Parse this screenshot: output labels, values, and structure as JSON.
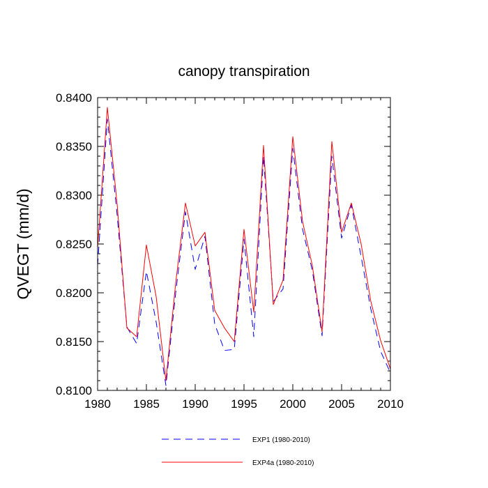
{
  "chart_data": {
    "type": "line",
    "title": "canopy transpiration",
    "ylabel": "QVEGT  (mm/d)",
    "xlabel": "",
    "xlim": [
      1980,
      2010
    ],
    "ylim": [
      0.81,
      0.84
    ],
    "xticks": [
      1980,
      1985,
      1990,
      1995,
      2000,
      2005,
      2010
    ],
    "xtick_labels": [
      "1980",
      "1985",
      "1990",
      "1995",
      "2000",
      "2005",
      "2010"
    ],
    "yticks": [
      0.81,
      0.815,
      0.82,
      0.825,
      0.83,
      0.835,
      0.84
    ],
    "ytick_labels": [
      "0.8100",
      "0.8150",
      "0.8200",
      "0.8250",
      "0.8300",
      "0.8350",
      "0.8400"
    ],
    "x": [
      1980,
      1981,
      1982,
      1983,
      1984,
      1985,
      1986,
      1987,
      1988,
      1989,
      1990,
      1991,
      1992,
      1993,
      1994,
      1995,
      1996,
      1997,
      1998,
      1999,
      2000,
      2001,
      2002,
      2003,
      2004,
      2005,
      2006,
      2007,
      2008,
      2009,
      2010
    ],
    "series": [
      {
        "name": "EXP1 (1980-2010)",
        "color": "#0000ff",
        "dash": "dashed",
        "values": [
          0.8228,
          0.8378,
          0.828,
          0.8165,
          0.8148,
          0.8222,
          0.817,
          0.8105,
          0.82,
          0.8283,
          0.8224,
          0.8258,
          0.8168,
          0.8141,
          0.8142,
          0.8255,
          0.8155,
          0.834,
          0.8191,
          0.8204,
          0.8348,
          0.8265,
          0.8223,
          0.8156,
          0.834,
          0.8256,
          0.829,
          0.8237,
          0.8183,
          0.814,
          0.8118
        ]
      },
      {
        "name": "EXP4a (1980-2010)",
        "color": "#ff0000",
        "dash": "solid",
        "values": [
          0.8246,
          0.839,
          0.8291,
          0.8164,
          0.8155,
          0.8249,
          0.8196,
          0.811,
          0.821,
          0.8292,
          0.8248,
          0.8262,
          0.8182,
          0.8164,
          0.815,
          0.8265,
          0.818,
          0.8351,
          0.8188,
          0.8213,
          0.836,
          0.8273,
          0.8228,
          0.816,
          0.8355,
          0.8262,
          0.8292,
          0.825,
          0.8191,
          0.8151,
          0.8122
        ]
      }
    ],
    "legend": {
      "placement": "bottom"
    },
    "grid": false
  }
}
